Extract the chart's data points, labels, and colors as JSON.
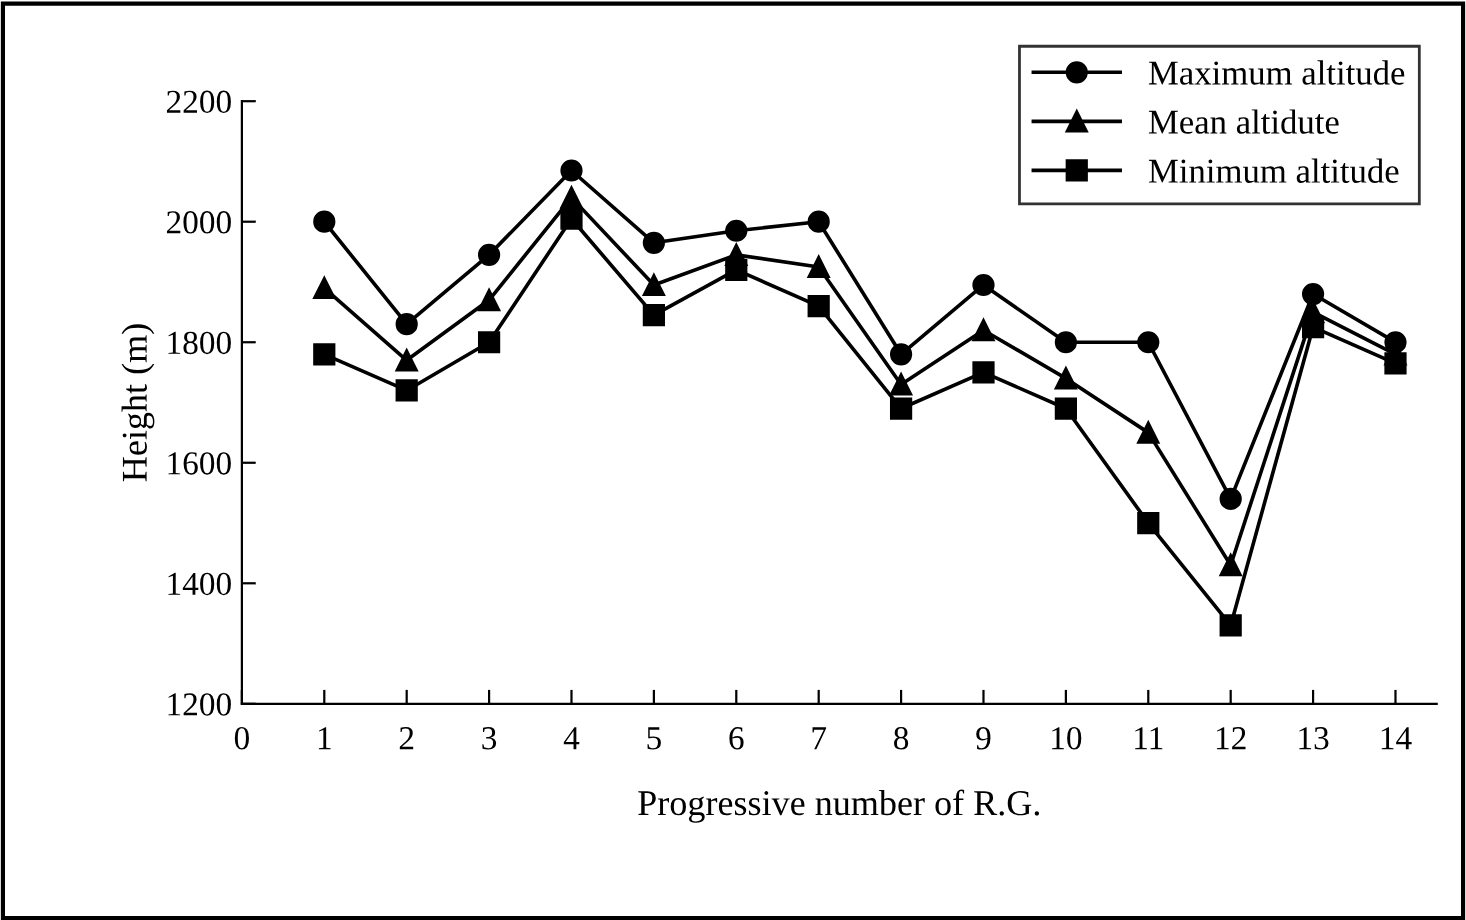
{
  "chart_data": {
    "type": "line",
    "xlabel": "Progressive number of R.G.",
    "ylabel": "Height (m)",
    "x": [
      1,
      2,
      3,
      4,
      5,
      6,
      7,
      8,
      9,
      10,
      11,
      12,
      13,
      14
    ],
    "xlim": [
      0,
      14.5
    ],
    "xticks": [
      0,
      1,
      2,
      3,
      4,
      5,
      6,
      7,
      8,
      9,
      10,
      11,
      12,
      13,
      14
    ],
    "ylim": [
      1200,
      2200
    ],
    "yticks": [
      1200,
      1400,
      1600,
      1800,
      2000,
      2200
    ],
    "series": [
      {
        "name": "Maximum altitude",
        "color": "#000000",
        "marker": "circle",
        "values": [
          2000,
          1830,
          1945,
          2085,
          1965,
          1985,
          2000,
          1780,
          1895,
          1800,
          1800,
          1540,
          1880,
          1800
        ]
      },
      {
        "name": "Mean altidute",
        "color": "#000000",
        "marker": "triangle",
        "values": [
          1890,
          1770,
          1870,
          2040,
          1895,
          1945,
          1925,
          1730,
          1820,
          1740,
          1650,
          1430,
          1850,
          1780
        ]
      },
      {
        "name": "Minimum altitude",
        "color": "#000000",
        "marker": "square",
        "values": [
          1780,
          1720,
          1800,
          2005,
          1845,
          1920,
          1860,
          1690,
          1750,
          1690,
          1500,
          1330,
          1825,
          1765
        ]
      }
    ],
    "legend": "top right",
    "grid": false,
    "line_style": "solid"
  }
}
